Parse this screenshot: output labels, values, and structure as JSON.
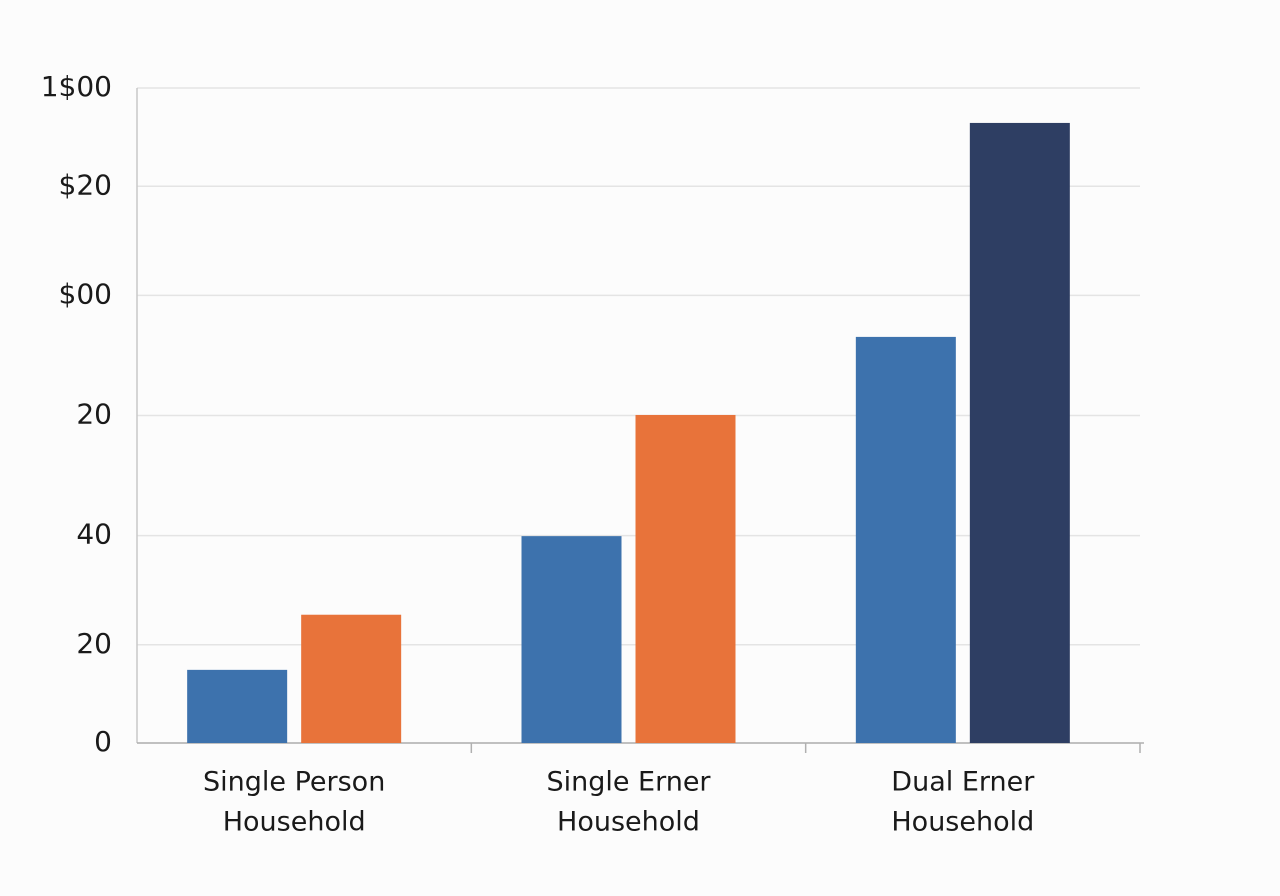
{
  "chart_data": {
    "type": "bar",
    "categories": [
      [
        "Single Person",
        "Household"
      ],
      [
        "Single Erner",
        "Household"
      ],
      [
        "Dual Erner",
        "Household"
      ]
    ],
    "series": [
      {
        "color": "#3d72ad",
        "values": [
          13.4,
          37.9,
          74.4
        ]
      },
      {
        "color": "#e8733a",
        "colors": [
          "#e8733a",
          "#e8733a",
          "#2e3e63"
        ],
        "values": [
          23.5,
          60.1,
          113.6
        ]
      }
    ],
    "ylim": [
      0,
      120
    ],
    "yticks": [
      0,
      {
        "value": 18,
        "label": "20"
      },
      {
        "value": 38,
        "label": "40"
      },
      {
        "value": 60,
        "label": "20"
      },
      {
        "value": 82,
        "label": "$00"
      },
      {
        "value": 102,
        "label": "$20"
      },
      {
        "value": 120,
        "label": "1$00"
      }
    ],
    "grid": true
  }
}
